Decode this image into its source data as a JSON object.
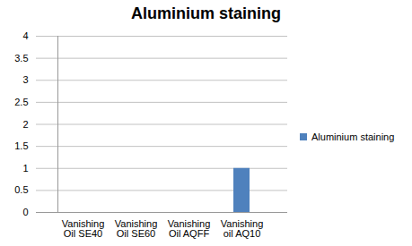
{
  "chart_data": {
    "type": "bar",
    "title": "Aluminium staining",
    "categories": [
      "Vanishing Oil SE40",
      "Vanishing Oil SE60",
      "Vanishing Oil AQFF",
      "Vanishing oil AQ10"
    ],
    "series": [
      {
        "name": "Aluminium staining",
        "color": "#4f81bd",
        "values": [
          0,
          0,
          0,
          1
        ]
      }
    ],
    "ylim": [
      0,
      4
    ],
    "yticks": [
      0,
      0.5,
      1,
      1.5,
      2,
      2.5,
      3,
      3.5,
      4
    ],
    "grid": true,
    "legend": "right"
  }
}
